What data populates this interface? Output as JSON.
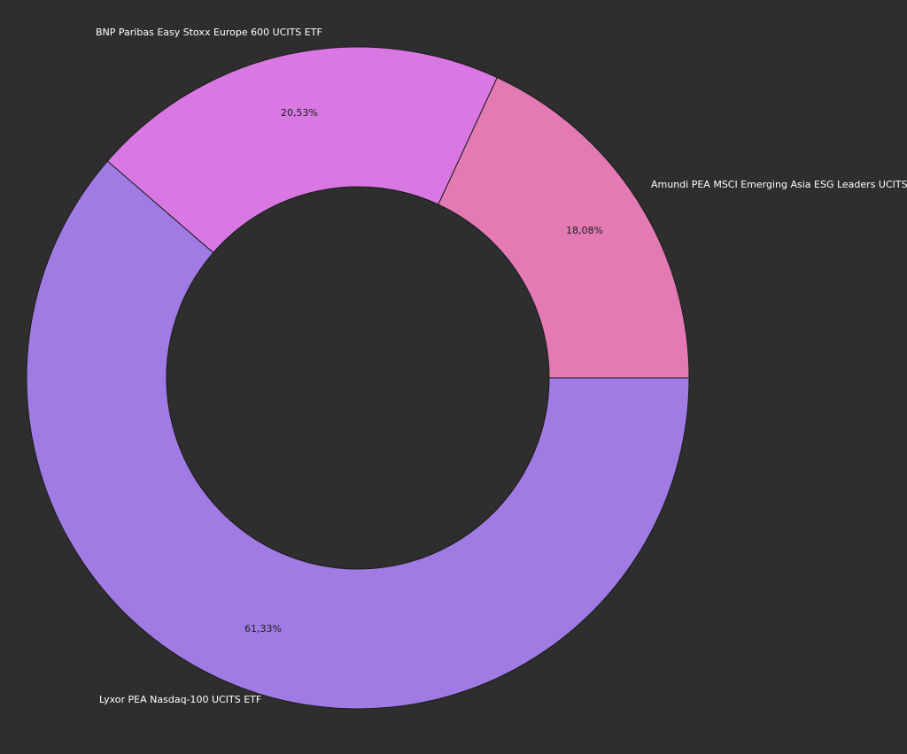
{
  "chart_data": {
    "type": "pie",
    "donut": true,
    "start": "3 o'clock, clockwise",
    "background_color": "#2e2e2e",
    "slices": [
      {
        "label": "Lyxor PEA Nasdaq-100 UCITS ETF",
        "value": 61.33,
        "value_label": "61,33%",
        "color": "#a07be3"
      },
      {
        "label": "BNP Paribas Easy Stoxx Europe 600 UCITS ETF",
        "value": 20.53,
        "value_label": "20,53%",
        "color": "#d978e3"
      },
      {
        "label": "Amundi PEA MSCI Emerging Asia ESG Leaders UCITS ETF",
        "value": 18.08,
        "value_label": "18,08%",
        "color": "#e37ab3"
      }
    ]
  }
}
